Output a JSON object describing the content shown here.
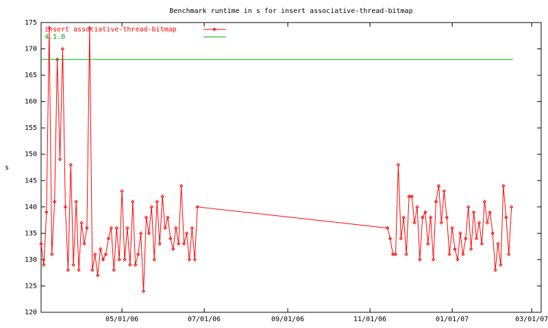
{
  "chart_data": {
    "type": "line",
    "title": "Benchmark runtime in s for insert associative-thread-bitmap",
    "y_label": "s",
    "xlim": [
      "03/02/06",
      "03/08/07"
    ],
    "xticks": [
      "05/01/06",
      "07/01/06",
      "09/01/06",
      "11/01/06",
      "01/01/07",
      "03/01/07"
    ],
    "ylim": [
      120,
      175
    ],
    "yticks": [
      120,
      125,
      130,
      135,
      140,
      145,
      150,
      155,
      160,
      165,
      170,
      175
    ],
    "legend": "top-left",
    "series": [
      {
        "name": "insert associative-thread-bitmap",
        "color": "#ff0000",
        "points": true,
        "x": [
          "03/02/06",
          "03/04/06",
          "03/06/06",
          "03/08/06",
          "03/10/06",
          "03/12/06",
          "03/14/06",
          "03/16/06",
          "03/18/06",
          "03/20/06",
          "03/22/06",
          "03/24/06",
          "03/26/06",
          "03/28/06",
          "03/30/06",
          "04/01/06",
          "04/03/06",
          "04/05/06",
          "04/07/06",
          "04/09/06",
          "04/11/06",
          "04/13/06",
          "04/15/06",
          "04/17/06",
          "04/19/06",
          "04/21/06",
          "04/23/06",
          "04/25/06",
          "04/27/06",
          "04/29/06",
          "05/01/06",
          "05/03/06",
          "05/05/06",
          "05/07/06",
          "05/09/06",
          "05/11/06",
          "05/13/06",
          "05/15/06",
          "05/17/06",
          "05/19/06",
          "05/21/06",
          "05/23/06",
          "05/25/06",
          "05/27/06",
          "05/29/06",
          "05/31/06",
          "06/02/06",
          "06/04/06",
          "06/06/06",
          "06/08/06",
          "06/10/06",
          "06/12/06",
          "06/14/06",
          "06/16/06",
          "06/18/06",
          "06/20/06",
          "06/22/06",
          "06/24/06",
          "06/26/06",
          "11/14/06",
          "11/16/06",
          "11/18/06",
          "11/20/06",
          "11/22/06",
          "11/24/06",
          "11/26/06",
          "11/28/06",
          "11/30/06",
          "12/02/06",
          "12/04/06",
          "12/06/06",
          "12/08/06",
          "12/10/06",
          "12/12/06",
          "12/14/06",
          "12/16/06",
          "12/18/06",
          "12/20/06",
          "12/22/06",
          "12/24/06",
          "12/26/06",
          "12/28/06",
          "12/30/06",
          "01/01/07",
          "01/03/07",
          "01/05/07",
          "01/07/07",
          "01/09/07",
          "01/11/07",
          "01/13/07",
          "01/15/07",
          "01/17/07",
          "01/19/07",
          "01/21/07",
          "01/23/07",
          "01/25/07",
          "01/27/07",
          "01/29/07",
          "01/31/07",
          "02/02/07",
          "02/04/07",
          "02/06/07",
          "02/08/07",
          "02/10/07",
          "02/12/07",
          "02/14/07"
        ],
        "values": [
          133,
          129,
          139,
          174,
          131,
          141,
          168,
          149,
          170,
          140,
          128,
          148,
          129,
          141,
          128,
          137,
          133,
          136,
          174,
          128,
          131,
          127,
          132,
          130,
          131,
          134,
          136,
          128,
          136,
          130,
          143,
          130,
          136,
          129,
          141,
          129,
          131,
          135,
          124,
          138,
          135,
          140,
          130,
          141,
          133,
          142,
          136,
          138,
          134,
          132,
          136,
          133,
          144,
          133,
          135,
          130,
          136,
          130,
          140,
          136,
          134,
          131,
          131,
          148,
          134,
          138,
          131,
          142,
          142,
          137,
          140,
          130,
          138,
          139,
          133,
          138,
          130,
          141,
          144,
          137,
          143,
          138,
          131,
          136,
          132,
          130,
          135,
          131,
          134,
          140,
          132,
          139,
          134,
          137,
          133,
          141,
          137,
          139,
          135,
          128,
          133,
          129,
          144,
          138,
          131,
          140
        ]
      },
      {
        "name": "4.1.0",
        "color": "#00a000",
        "points": false,
        "x": [
          "03/02/06",
          "02/15/07"
        ],
        "values": [
          168,
          168
        ]
      }
    ]
  }
}
